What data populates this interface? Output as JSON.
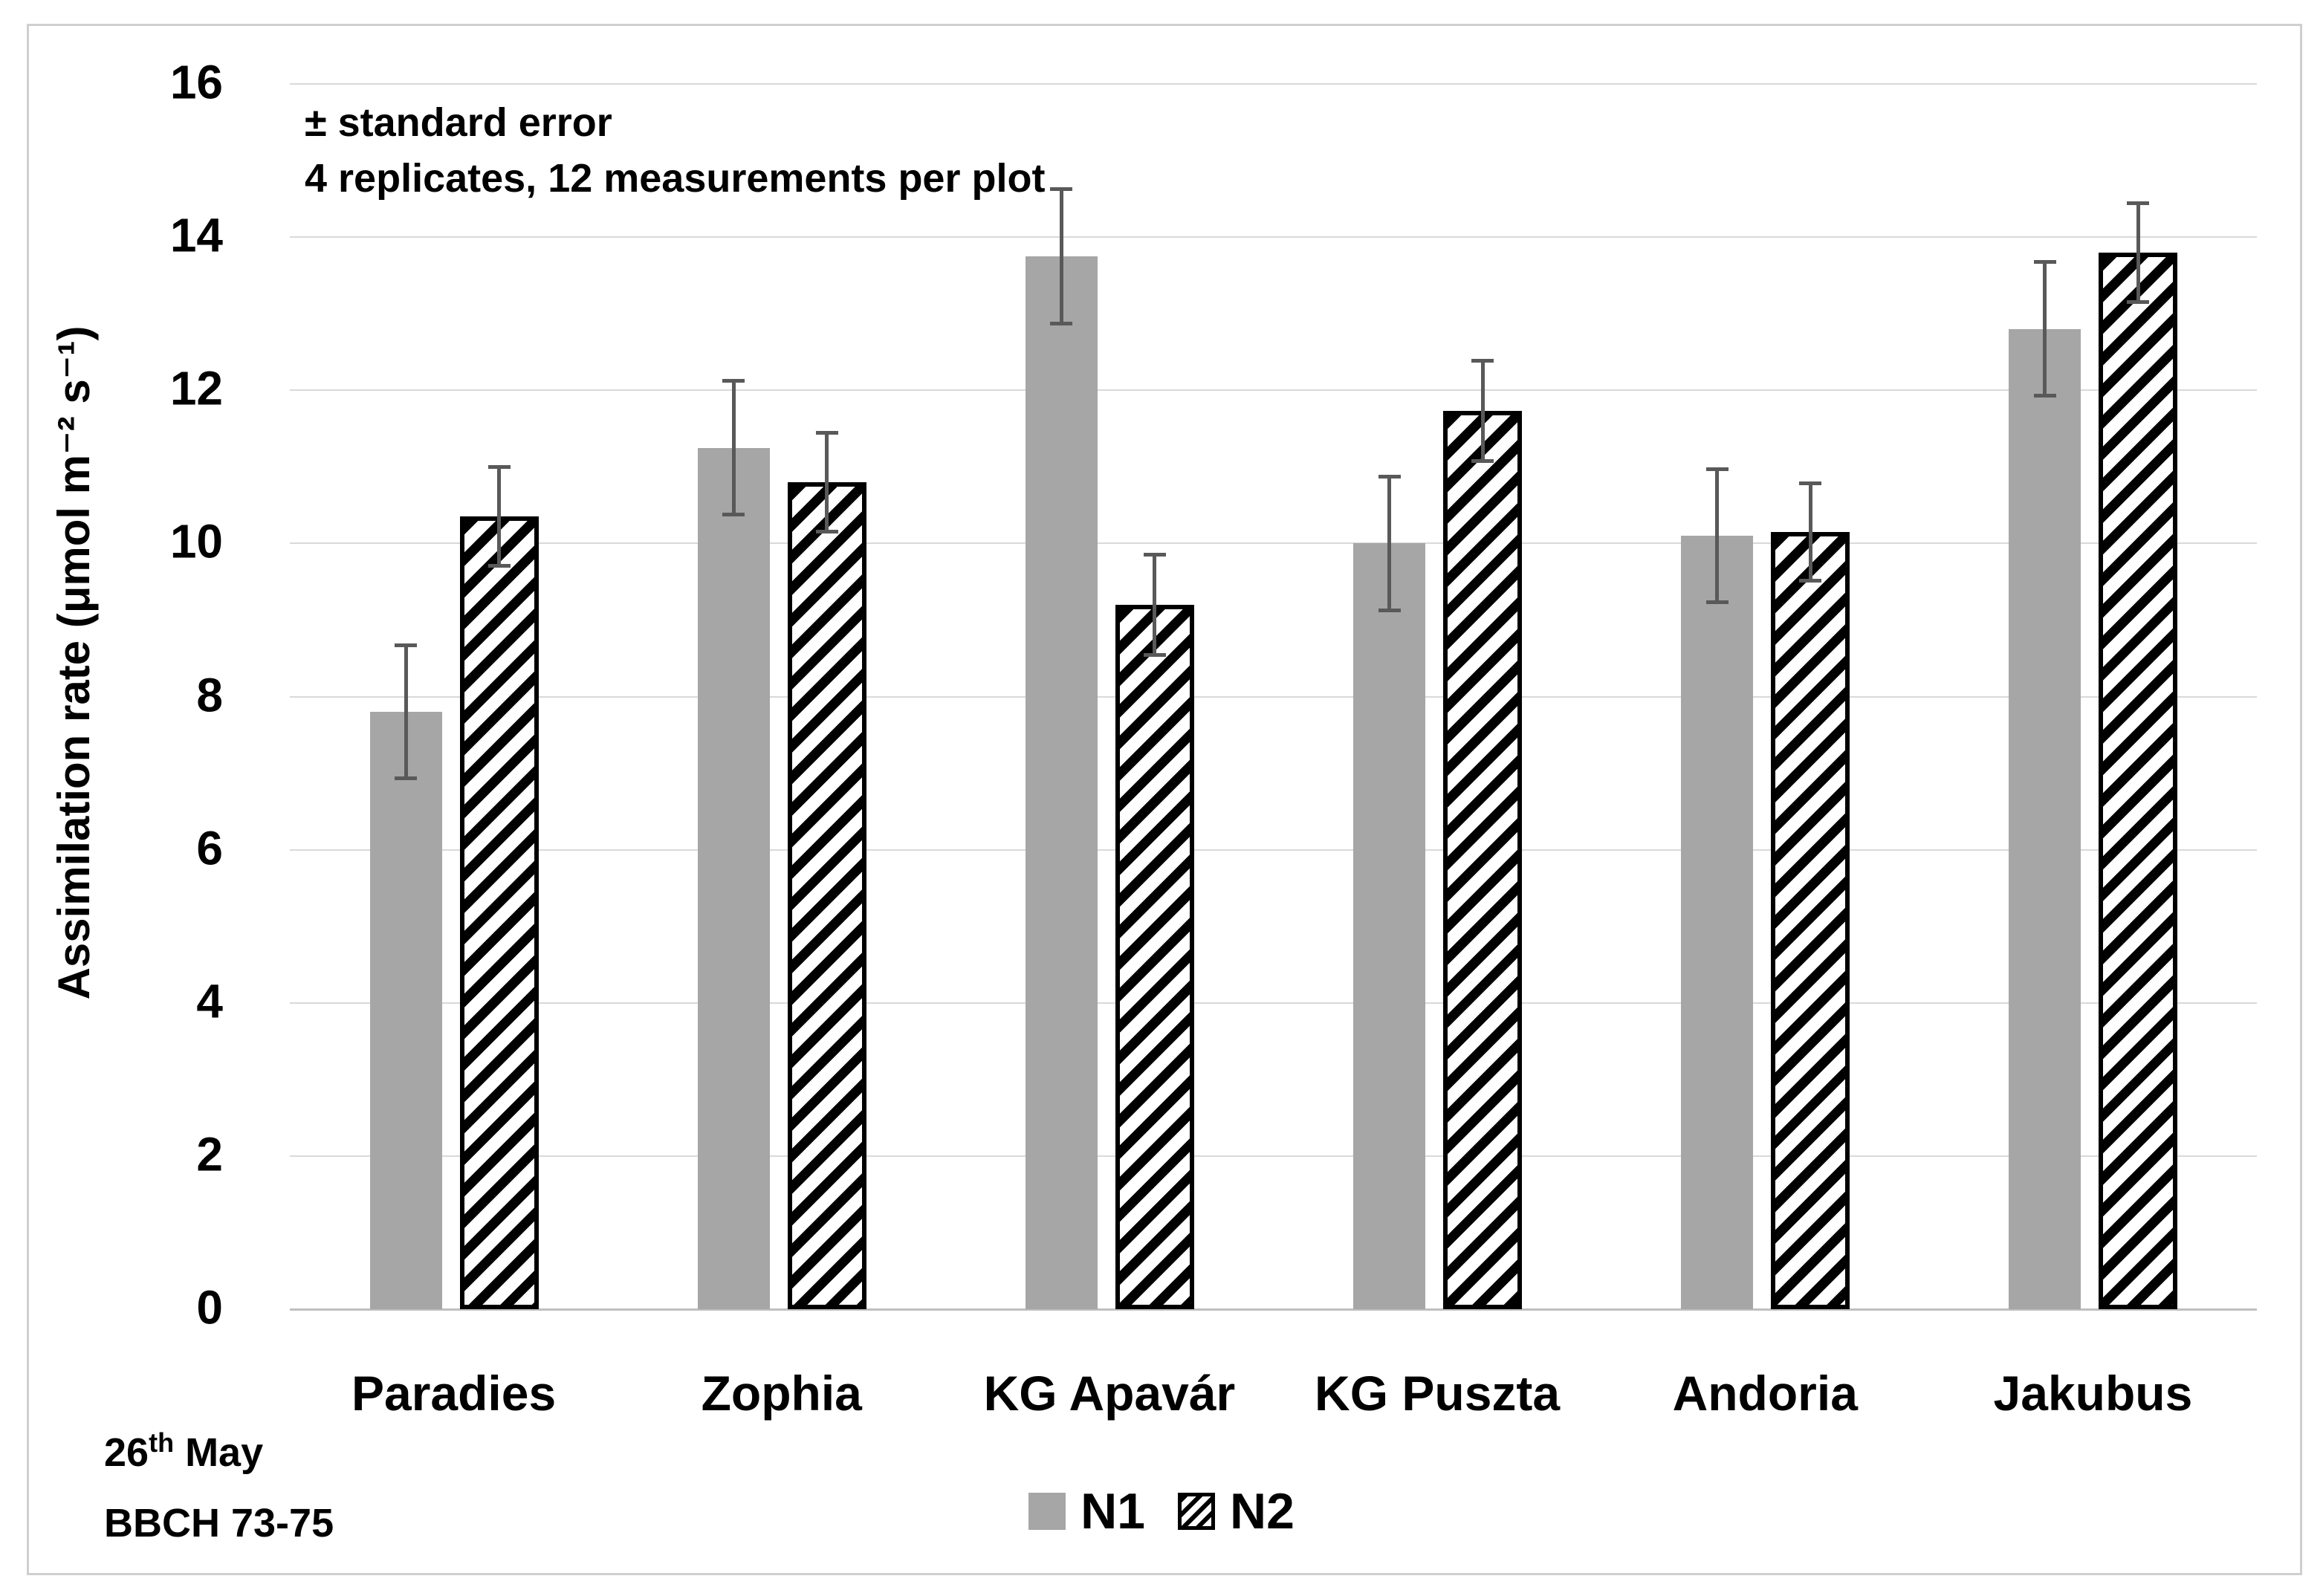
{
  "figure": {
    "annotation_line1": "± standard error",
    "annotation_line2": "4 replicates, 12 measurements per plot",
    "date_day": "26",
    "date_suffix": "th",
    "date_month": " May",
    "stage": "BBCH 73-75"
  },
  "colors": {
    "bar_fill": "#a6a6a6",
    "hatch": "#000000",
    "error_bar": "#595959",
    "gridline": "#d9d9d9",
    "axis_line": "#bfbfbf",
    "frame": "#cfcfcf",
    "text": "#000000"
  },
  "chart_data": {
    "type": "bar",
    "title": "",
    "xlabel": "",
    "ylabel": "Assimilation rate (μmol m⁻² s⁻¹)",
    "ylim": [
      0,
      16
    ],
    "ytick_step": 2,
    "grid": true,
    "legend_position": "bottom-center",
    "categories": [
      "Paradies",
      "Zophia",
      "KG Apavár",
      "KG Puszta",
      "Andoria",
      "Jakubus"
    ],
    "series": [
      {
        "name": "N1",
        "style": "solid-gray",
        "values": [
          7.8,
          11.25,
          13.75,
          10.0,
          10.1,
          12.8
        ],
        "errors": [
          0.87,
          0.88,
          0.88,
          0.88,
          0.87,
          0.88
        ]
      },
      {
        "name": "N2",
        "style": "black-diagonal-hatch",
        "values": [
          10.35,
          10.8,
          9.2,
          11.73,
          10.15,
          13.8
        ],
        "errors": [
          0.65,
          0.65,
          0.66,
          0.66,
          0.64,
          0.65
        ]
      }
    ],
    "error_bar_note": "± standard error, 4 replicates, 12 measurements per plot",
    "measurement_date": "26th May",
    "growth_stage": "BBCH 73-75"
  }
}
